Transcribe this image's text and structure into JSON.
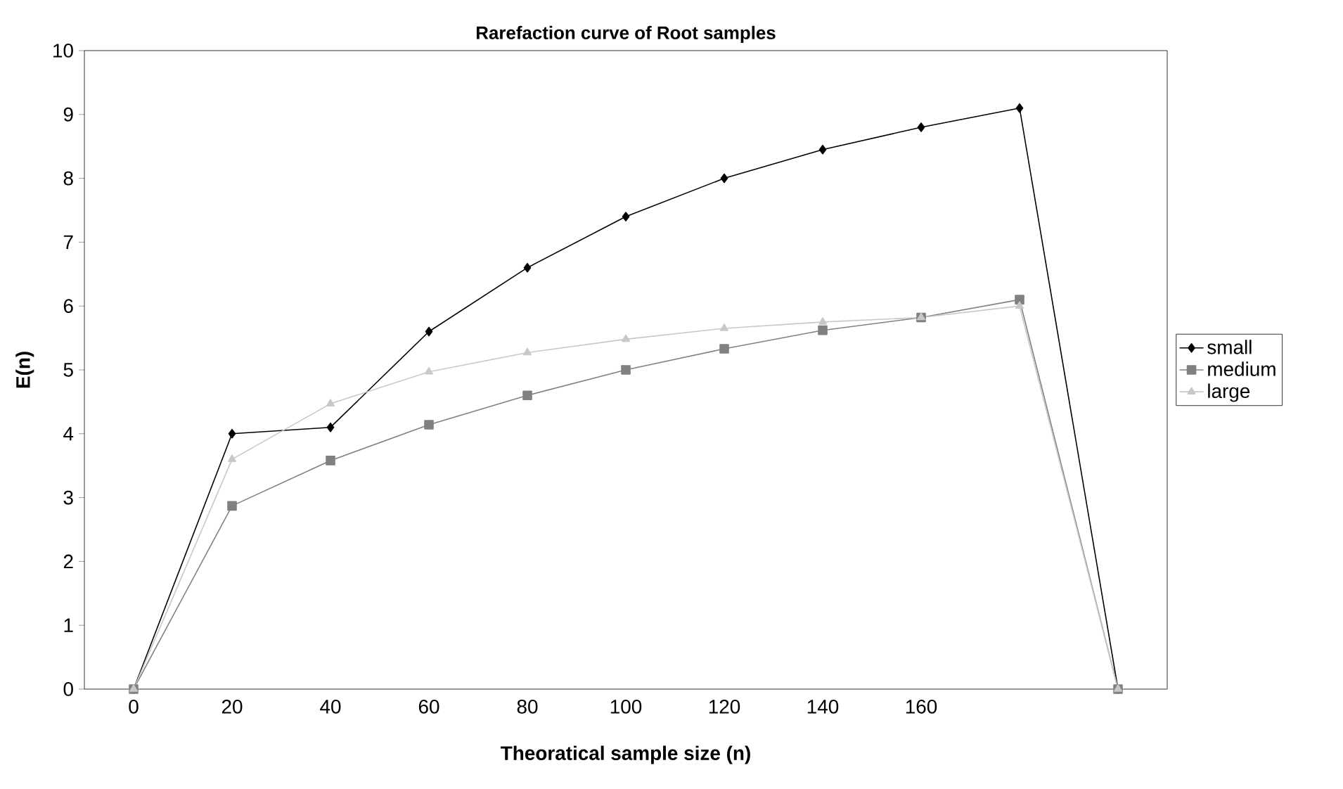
{
  "chart_data": {
    "type": "line",
    "title": "Rarefaction curve of Root samples",
    "xlabel": "Theoratical sample size (n)",
    "ylabel": "E(n)",
    "categories": [
      "0",
      "20",
      "40",
      "60",
      "80",
      "100",
      "120",
      "140",
      "160",
      null,
      null
    ],
    "series": [
      {
        "name": "small",
        "color": "#000000",
        "marker": "diamond",
        "values": [
          0,
          4.0,
          4.1,
          5.6,
          6.6,
          7.4,
          8.0,
          8.45,
          8.8,
          9.1,
          0
        ]
      },
      {
        "name": "medium",
        "color": "#808080",
        "marker": "square",
        "values": [
          0,
          2.87,
          3.58,
          4.14,
          4.6,
          5.0,
          5.33,
          5.62,
          5.82,
          6.1,
          0
        ]
      },
      {
        "name": "large",
        "color": "#c8c8c8",
        "marker": "triangle",
        "values": [
          0,
          3.6,
          4.47,
          4.97,
          5.27,
          5.48,
          5.65,
          5.75,
          5.82,
          6.0,
          0
        ]
      }
    ],
    "ylim": [
      0,
      10
    ],
    "yticks": [
      0,
      1,
      2,
      3,
      4,
      5,
      6,
      7,
      8,
      9,
      10
    ],
    "grid": false,
    "legend": "right",
    "line_style": "solid"
  }
}
